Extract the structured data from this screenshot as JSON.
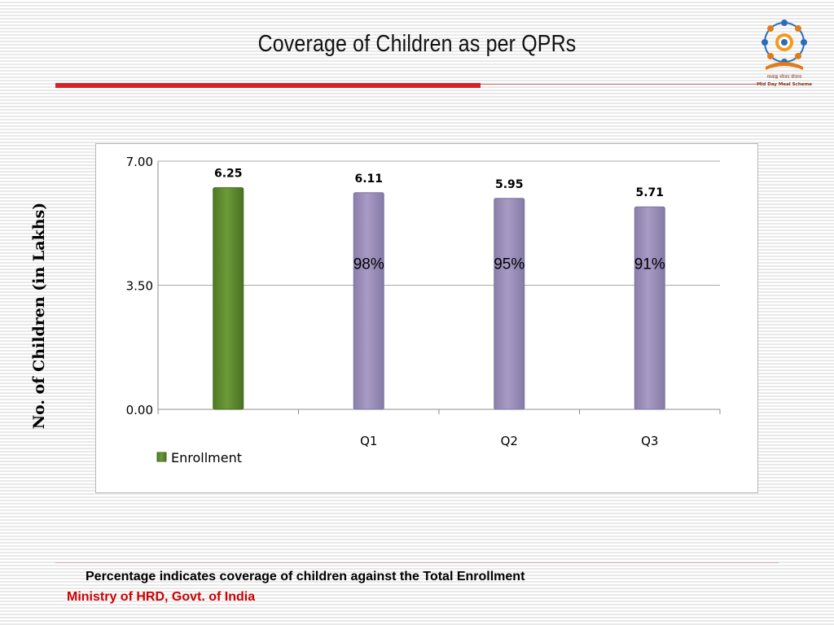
{
  "slide": {
    "title": "Coverage of Children as per QPRs",
    "logo_text_line1": "मध्याह्न भोजन योजना",
    "logo_text_line2": "Mid Day Meal Scheme",
    "y_axis_title": "No. of Children (in Lakhs)",
    "footnote": "Percentage indicates coverage of children against the Total Enrollment",
    "source": "Ministry of HRD, Govt. of India"
  },
  "colors": {
    "accent_red": "#d8222a",
    "source_red": "#cc0000",
    "enrollment_green": "#6b9a3a",
    "quarter_purple": "#a89cc6"
  },
  "chart_data": {
    "type": "bar",
    "categories": [
      "",
      "Q1",
      "Q2",
      "Q3"
    ],
    "values": [
      6.25,
      6.11,
      5.95,
      5.71
    ],
    "data_labels": [
      "6.25",
      "6.11",
      "5.95",
      "5.71"
    ],
    "percent_labels": [
      "",
      "98%",
      "95%",
      "91%"
    ],
    "ylim": [
      0,
      7
    ],
    "yticks": [
      "0.00",
      "3.50",
      "7.00"
    ],
    "ytick_values": [
      0,
      3.5,
      7
    ],
    "grid": true,
    "legend": {
      "placement": "bottom-left",
      "entries": [
        "Enrollment"
      ]
    },
    "xlabel": "",
    "ylabel": "No. of Children (in Lakhs)"
  }
}
